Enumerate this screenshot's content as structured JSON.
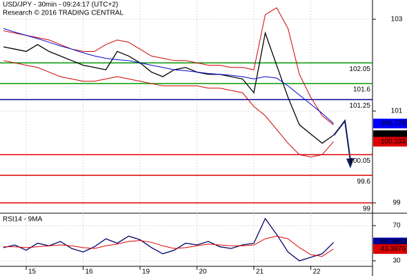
{
  "chart_data": [
    {
      "type": "line",
      "title": "USD/JPY - 30min - 09:24:17 (UTC+2)",
      "subtitle": "Research © 2016 TRADING CENTRAL",
      "ylim": [
        98.79,
        103.42
      ],
      "yticks": [
        99,
        101,
        103
      ],
      "grid": true,
      "series": [
        {
          "color": "#000000",
          "values": [
            102.4,
            102.35,
            102.3,
            102.45,
            102.3,
            102.2,
            102.1,
            102.0,
            101.95,
            101.9,
            102.3,
            102.2,
            102.05,
            101.85,
            101.75,
            101.9,
            101.95,
            101.85,
            101.8,
            101.8,
            101.75,
            101.7,
            101.4,
            102.7,
            102.0,
            101.3,
            100.7,
            100.5,
            100.3,
            100.476
          ]
        },
        {
          "color": "#cc0000",
          "values": [
            102.75,
            102.7,
            102.65,
            102.6,
            102.55,
            102.45,
            102.35,
            102.3,
            102.3,
            102.45,
            102.55,
            102.5,
            102.35,
            102.2,
            102.15,
            102.1,
            102.1,
            102.05,
            102.0,
            102.0,
            101.95,
            101.95,
            101.9,
            103.1,
            103.25,
            102.8,
            101.8,
            101.3,
            100.9,
            100.7
          ]
        },
        {
          "color": "#cc0000",
          "values": [
            102.1,
            102.05,
            102.0,
            101.95,
            101.85,
            101.75,
            101.7,
            101.65,
            101.65,
            101.7,
            101.75,
            101.7,
            101.65,
            101.6,
            101.55,
            101.55,
            101.55,
            101.55,
            101.5,
            101.5,
            101.45,
            101.4,
            101.1,
            100.9,
            100.6,
            100.3,
            100.05,
            100.0,
            100.05,
            100.333
          ]
        },
        {
          "color": "#0000cc",
          "values": [
            102.8,
            102.72,
            102.65,
            102.58,
            102.5,
            102.42,
            102.35,
            102.27,
            102.2,
            102.15,
            102.12,
            102.1,
            102.05,
            102.0,
            101.95,
            101.9,
            101.88,
            101.85,
            101.82,
            101.8,
            101.78,
            101.75,
            101.7,
            101.75,
            101.72,
            101.55,
            101.35,
            101.15,
            100.95,
            100.729
          ]
        }
      ],
      "last_value_labels": [
        {
          "series": 3,
          "color": "#0000ff"
        },
        {
          "series": 0,
          "color": "#000000"
        },
        {
          "series": 2,
          "color": "#dd0000"
        }
      ],
      "levels": [
        {
          "value": 102.05,
          "color": "#009900"
        },
        {
          "value": 101.6,
          "color": "#009900"
        },
        {
          "value": 101.25,
          "color": "#000099"
        },
        {
          "value": 100.05,
          "color": "#dd0000"
        },
        {
          "value": 99.6,
          "color": "#dd0000"
        },
        {
          "value": 99,
          "color": "#dd0000"
        }
      ]
    },
    {
      "type": "line",
      "title": "RSI14 - 9MA",
      "categories": [
        null,
        null,
        "15",
        null,
        null,
        null,
        null,
        "16",
        null,
        null,
        null,
        null,
        "19",
        null,
        null,
        null,
        null,
        "20",
        null,
        null,
        null,
        null,
        "21",
        null,
        null,
        null,
        null,
        "22",
        null,
        null
      ],
      "ylim": [
        24.5,
        82.5
      ],
      "yticks": [
        30,
        70
      ],
      "grid": true,
      "series": [
        {
          "color": "#000066",
          "values": [
            45,
            48,
            42,
            50,
            47,
            52,
            44,
            40,
            46,
            55,
            50,
            58,
            54,
            45,
            38,
            42,
            50,
            48,
            52,
            46,
            44,
            48,
            50,
            78,
            60,
            40,
            30,
            34,
            38,
            50.7965
          ]
        },
        {
          "color": "#dd0000",
          "values": [
            46,
            46,
            45,
            46,
            47,
            48,
            47,
            45,
            44,
            47,
            49,
            52,
            53,
            51,
            47,
            44,
            45,
            47,
            49,
            48,
            47,
            47,
            48,
            55,
            58,
            55,
            45,
            37,
            35,
            43.3976
          ]
        }
      ],
      "last_value_labels": [
        {
          "series": 0,
          "color": "#000099"
        },
        {
          "series": 1,
          "color": "#dd0000"
        }
      ]
    }
  ]
}
